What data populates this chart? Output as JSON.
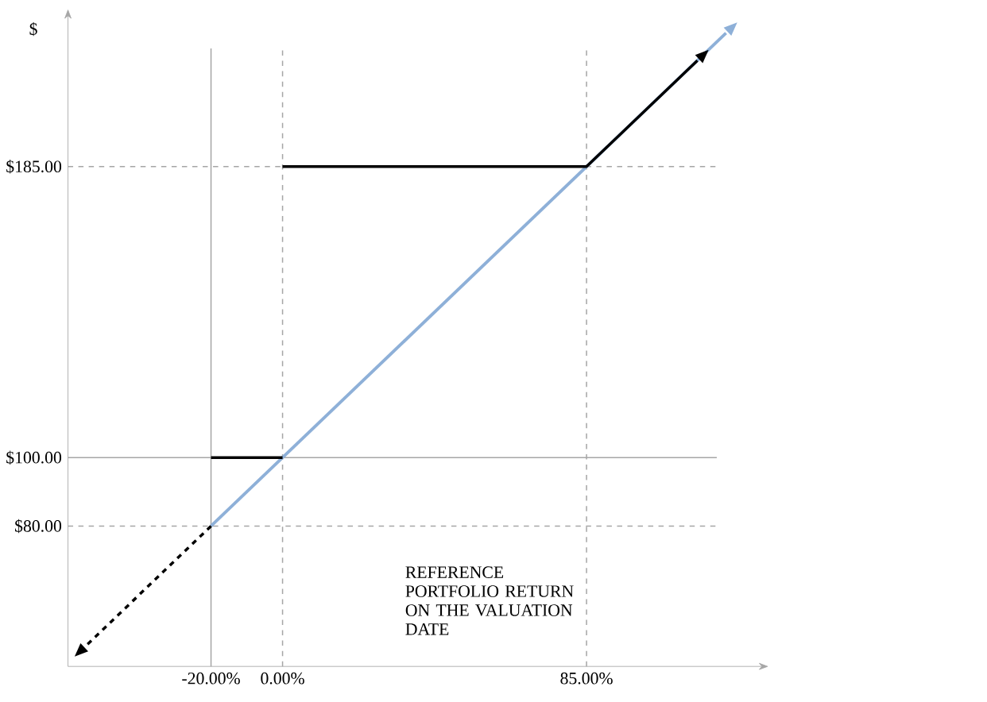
{
  "chart_data": {
    "type": "line",
    "xlabel": "REFERENCE PORTFOLIO RETURN ON THE VALUATION DATE",
    "ylabel": "$",
    "xlim": [
      -60,
      133
    ],
    "ylim": [
      39,
      228
    ],
    "xticks": [
      {
        "value": -20,
        "label": "-20.00%"
      },
      {
        "value": 0,
        "label": "0.00%"
      },
      {
        "value": 85,
        "label": "85.00%"
      }
    ],
    "yticks": [
      {
        "value": 80,
        "label": "$80.00"
      },
      {
        "value": 100,
        "label": "$100.00"
      },
      {
        "value": 185,
        "label": "$185.00"
      }
    ],
    "grid": false,
    "series": [
      {
        "color": "#8eb0d8",
        "x": [
          -20,
          124
        ],
        "values": [
          80,
          224
        ]
      },
      {
        "color": "#000000",
        "x": [
          -20,
          -55
        ],
        "values": [
          80,
          45
        ],
        "line_style": "dashed"
      },
      {
        "color": "#000000",
        "x": [
          -20,
          0
        ],
        "values": [
          100,
          100
        ]
      },
      {
        "color": "#000000",
        "x": [
          0,
          85,
          116
        ],
        "values": [
          185,
          185,
          216
        ]
      }
    ],
    "ref_lines": [
      {
        "axis": "x",
        "value": -20,
        "color": "#a6a6a6",
        "line_style": "solid"
      },
      {
        "axis": "x",
        "value": 0,
        "color": "#a6a6a6",
        "line_style": "dashed"
      },
      {
        "axis": "x",
        "value": 85,
        "color": "#a6a6a6",
        "line_style": "dashed"
      },
      {
        "axis": "y",
        "value": 100,
        "color": "#a6a6a6",
        "line_style": "solid"
      },
      {
        "axis": "y",
        "value": 80,
        "color": "#a6a6a6",
        "line_style": "dashed"
      },
      {
        "axis": "y",
        "value": 185,
        "color": "#a6a6a6",
        "line_style": "dashed"
      }
    ]
  }
}
